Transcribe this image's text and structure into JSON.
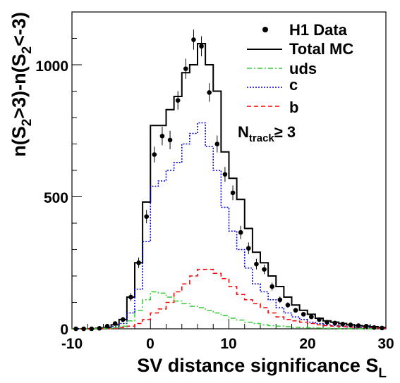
{
  "chart_data": {
    "type": "line",
    "xlim": [
      -10,
      30
    ],
    "ylim": [
      0,
      1200
    ],
    "xticks": [
      -10,
      0,
      10,
      20,
      30
    ],
    "yticks": [
      0,
      500,
      1000
    ],
    "xlabel_main": "SV distance significance S",
    "xlabel_sub": "L",
    "ylabel": {
      "p1": "n(S",
      "s1": "2",
      "p2": ">3)-n(S",
      "s2": "2",
      "p3": "<-3)"
    },
    "annotation": {
      "main": "N",
      "sub": "track",
      "rest": "≥ 3"
    },
    "legend": {
      "data": "H1 Data",
      "total": "Total MC",
      "uds": "uds",
      "c": "c",
      "b": "b"
    },
    "colors": {
      "data": "#000000",
      "total": "#000000",
      "uds": "#33cc33",
      "c": "#0000dd",
      "b": "#ff0000"
    },
    "bin_edges": [
      -10,
      -9,
      -8,
      -7,
      -6,
      -5,
      -4,
      -3,
      -2,
      -1,
      0,
      1,
      2,
      3,
      4,
      5,
      6,
      7,
      8,
      9,
      10,
      11,
      12,
      13,
      14,
      15,
      16,
      17,
      18,
      19,
      20,
      21,
      22,
      23,
      24,
      25,
      26,
      27,
      28,
      29,
      30
    ],
    "series": [
      {
        "key": "total",
        "values": [
          0,
          0,
          0,
          2,
          5,
          15,
          35,
          120,
          250,
          480,
          770,
          770,
          830,
          880,
          970,
          1000,
          1080,
          1000,
          900,
          670,
          570,
          490,
          380,
          290,
          250,
          200,
          160,
          120,
          90,
          70,
          55,
          40,
          30,
          25,
          20,
          15,
          12,
          10,
          8,
          5
        ]
      },
      {
        "key": "c",
        "values": [
          0,
          0,
          0,
          1,
          3,
          8,
          20,
          60,
          150,
          330,
          540,
          560,
          600,
          630,
          700,
          740,
          780,
          690,
          600,
          460,
          370,
          300,
          230,
          170,
          140,
          110,
          80,
          60,
          45,
          35,
          25,
          20,
          15,
          12,
          10,
          7,
          5,
          4,
          3,
          2
        ]
      },
      {
        "key": "b",
        "values": [
          0,
          0,
          0,
          0,
          1,
          2,
          5,
          10,
          20,
          35,
          60,
          75,
          100,
          140,
          170,
          200,
          225,
          225,
          210,
          190,
          160,
          130,
          110,
          95,
          80,
          60,
          45,
          35,
          30,
          25,
          20,
          15,
          12,
          10,
          8,
          6,
          5,
          4,
          3,
          2
        ]
      },
      {
        "key": "uds",
        "values": [
          0,
          0,
          0,
          1,
          2,
          4,
          10,
          30,
          70,
          110,
          140,
          135,
          120,
          105,
          95,
          85,
          80,
          70,
          60,
          50,
          40,
          33,
          25,
          20,
          15,
          12,
          10,
          8,
          6,
          5,
          4,
          3,
          2,
          2,
          1,
          1,
          1,
          0,
          0,
          0
        ]
      }
    ],
    "data_points": {
      "x": [
        -9.5,
        -8.5,
        -7.5,
        -6.5,
        -5.5,
        -4.5,
        -3.5,
        -2.5,
        -1.5,
        -0.5,
        0.5,
        1.5,
        2.5,
        3.5,
        4.5,
        5.5,
        6.5,
        7.5,
        8.5,
        9.5,
        10.5,
        11.5,
        12.5,
        13.5,
        14.5,
        15.5,
        16.5,
        17.5,
        18.5,
        19.5,
        20.5,
        21.5,
        22.5,
        23.5,
        24.5,
        25.5,
        26.5,
        27.5,
        28.5,
        29.5
      ],
      "y": [
        0,
        0,
        0,
        2,
        10,
        20,
        35,
        120,
        250,
        425,
        660,
        730,
        715,
        865,
        985,
        1095,
        1070,
        895,
        700,
        585,
        515,
        365,
        305,
        245,
        225,
        160,
        110,
        90,
        70,
        55,
        45,
        35,
        25,
        22,
        18,
        15,
        12,
        10,
        5,
        3
      ],
      "err": [
        2,
        2,
        2,
        3,
        5,
        7,
        10,
        15,
        20,
        25,
        30,
        35,
        35,
        35,
        38,
        38,
        38,
        35,
        32,
        28,
        28,
        25,
        22,
        20,
        18,
        15,
        12,
        10,
        9,
        8,
        7,
        6,
        5,
        5,
        4,
        4,
        3,
        3,
        2,
        2
      ]
    }
  }
}
